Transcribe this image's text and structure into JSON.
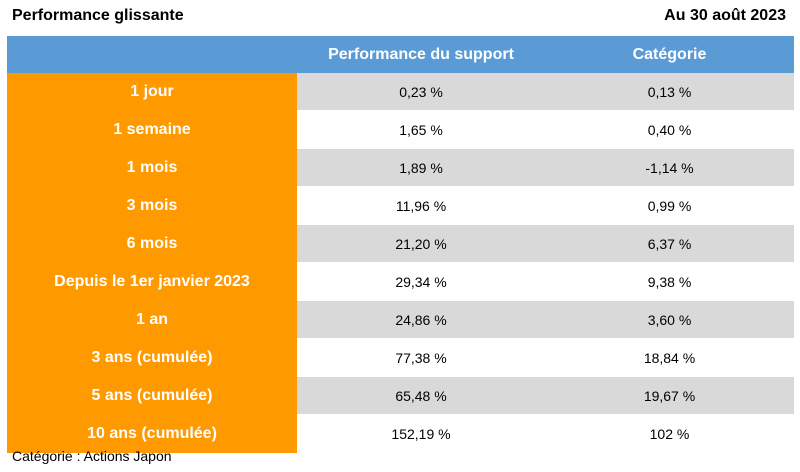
{
  "header": {
    "title": "Performance glissante",
    "date": "Au 30 août 2023"
  },
  "table": {
    "columns": [
      "",
      "Performance du support",
      "Catégorie"
    ],
    "rows": [
      {
        "period": "1 jour",
        "support": "0,23 %",
        "category": "0,13 %"
      },
      {
        "period": "1 semaine",
        "support": "1,65 %",
        "category": "0,40 %"
      },
      {
        "period": "1 mois",
        "support": "1,89 %",
        "category": "-1,14 %"
      },
      {
        "period": "3 mois",
        "support": "11,96 %",
        "category": "0,99 %"
      },
      {
        "period": "6 mois",
        "support": "21,20 %",
        "category": "6,37 %"
      },
      {
        "period": "Depuis le 1er janvier 2023",
        "support": "29,34 %",
        "category": "9,38 %"
      },
      {
        "period": "1 an",
        "support": "24,86 %",
        "category": "3,60 %"
      },
      {
        "period": "3 ans (cumulée)",
        "support": "77,38 %",
        "category": "18,84 %"
      },
      {
        "period": "5 ans (cumulée)",
        "support": "65,48 %",
        "category": "19,67 %"
      },
      {
        "period": "10 ans (cumulée)",
        "support": "152,19 %",
        "category": "102 %"
      }
    ]
  },
  "footnote": "Catégorie : Actions Japon",
  "colors": {
    "header_bg": "#5b9bd5",
    "period_bg": "#ff9900",
    "row_alt_bg": "#d9d9d9"
  }
}
